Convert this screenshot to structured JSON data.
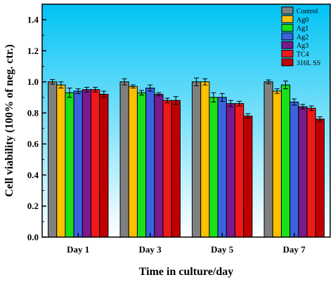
{
  "chart_data": {
    "type": "bar",
    "xlabel": "Time in culture/day",
    "ylabel": "Cell viability (100% of neg. ctr.)",
    "ylim": [
      0,
      1.5
    ],
    "yticks": [
      "0.0",
      "0.2",
      "0.4",
      "0.6",
      "0.8",
      "1.0",
      "1.2",
      "1.4"
    ],
    "categories": [
      "Day 1",
      "Day 3",
      "Day 5",
      "Day 7"
    ],
    "legend_position": "top-right",
    "grid": false,
    "background_gradient": [
      "#00c3f5",
      "#ffffff"
    ],
    "series": [
      {
        "name": "Control",
        "color": "#808080",
        "values": [
          1.0,
          1.0,
          1.0,
          1.0
        ],
        "errors": [
          0.015,
          0.02,
          0.025,
          0.012
        ]
      },
      {
        "name": "Ag0",
        "color": "#ffc000",
        "values": [
          0.98,
          0.97,
          1.0,
          0.94
        ],
        "errors": [
          0.02,
          0.01,
          0.02,
          0.015
        ]
      },
      {
        "name": "Ag1",
        "color": "#1ae01a",
        "values": [
          0.93,
          0.93,
          0.9,
          0.98
        ],
        "errors": [
          0.03,
          0.015,
          0.03,
          0.025
        ]
      },
      {
        "name": "Ag2",
        "color": "#3b63e0",
        "values": [
          0.94,
          0.96,
          0.9,
          0.87
        ],
        "errors": [
          0.015,
          0.02,
          0.025,
          0.02
        ]
      },
      {
        "name": "Ag3",
        "color": "#7a1a8c",
        "values": [
          0.95,
          0.92,
          0.86,
          0.84
        ],
        "errors": [
          0.015,
          0.01,
          0.02,
          0.015
        ]
      },
      {
        "name": "TC4",
        "color": "#f01818",
        "values": [
          0.95,
          0.88,
          0.86,
          0.83
        ],
        "errors": [
          0.015,
          0.015,
          0.015,
          0.015
        ]
      },
      {
        "name": "316L SS",
        "color": "#c00000",
        "values": [
          0.92,
          0.88,
          0.78,
          0.76
        ],
        "errors": [
          0.02,
          0.025,
          0.015,
          0.015
        ]
      }
    ]
  }
}
